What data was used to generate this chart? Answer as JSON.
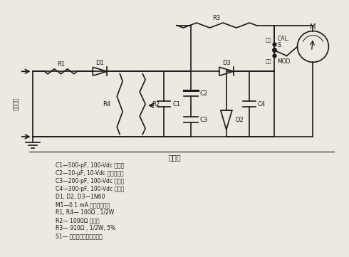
{
  "bg_color": "#ede8e0",
  "line_color": "#1a1a1a",
  "text_color": "#1a1a1a",
  "title": "元件表",
  "parts_list": [
    "C1—500-pF, 100-Vdc 电容器",
    "C2—10-μF, 10-Vdc 电解电容器",
    "C3—200-pF, 100-Vdc 电容器",
    "C4—300-pF, 100-Vdc 电容器",
    "D1, D2, D3—1N60",
    "M1—0.1 mA 直流高速电表",
    "R1, R4— 100Ω , 1/2W",
    "R2— 1000Ω 电位器",
    "R3— 910Ω , 1/2W, 5%",
    "S1— 中刀双掷弹性遥位开关"
  ],
  "input_label": "射频输入"
}
